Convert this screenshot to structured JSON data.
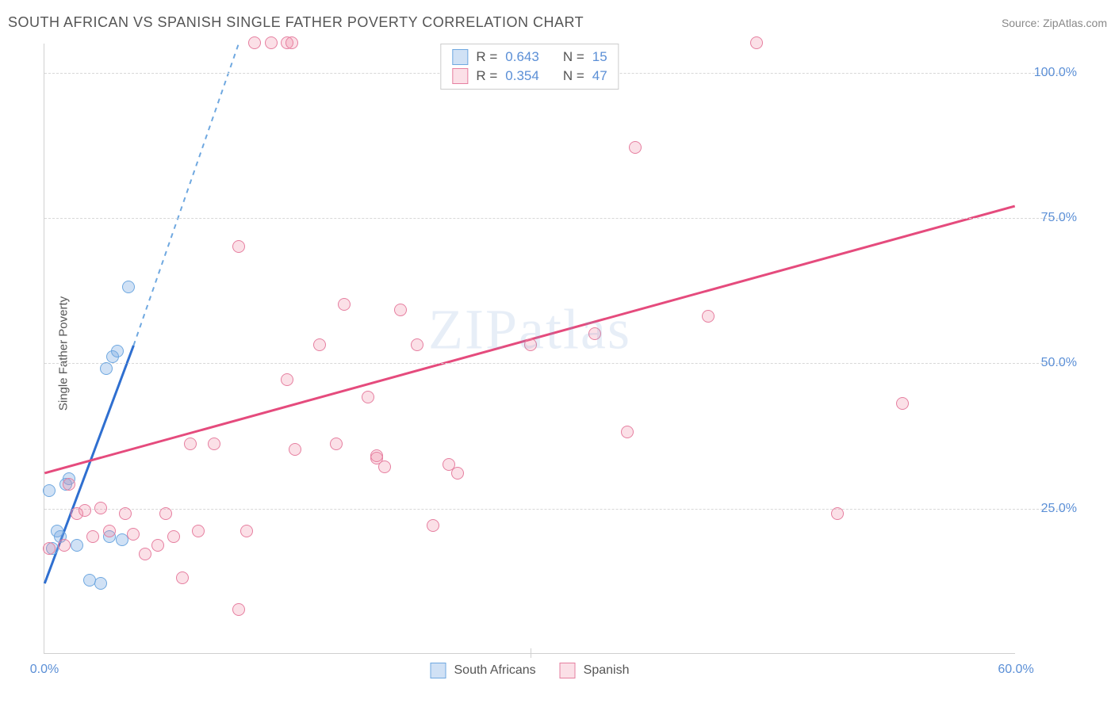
{
  "header": {
    "title": "SOUTH AFRICAN VS SPANISH SINGLE FATHER POVERTY CORRELATION CHART",
    "source": "Source: ZipAtlas.com"
  },
  "chart": {
    "type": "scatter",
    "ylabel": "Single Father Poverty",
    "watermark": "ZIPatlas",
    "background_color": "#ffffff",
    "grid_color": "#d8d8d8",
    "axis_color": "#d0d0d0",
    "tick_label_color": "#5b8fd6",
    "xlim": [
      0,
      60
    ],
    "ylim": [
      0,
      105
    ],
    "yticks": [
      25,
      50,
      75,
      100
    ],
    "ytick_labels": [
      "25.0%",
      "50.0%",
      "75.0%",
      "100.0%"
    ],
    "xticks": [
      0,
      60
    ],
    "xtick_labels": [
      "0.0%",
      "60.0%"
    ],
    "xtick_line_positions": [
      30
    ],
    "point_radius": 8,
    "series": [
      {
        "name": "South Africans",
        "color_fill": "rgba(120,170,225,0.35)",
        "color_stroke": "#6fa8e0",
        "trend_color": "#2f6fd0",
        "trend_dash_color": "#6fa8e0",
        "R": "0.643",
        "N": "15",
        "points": [
          [
            0.5,
            18
          ],
          [
            0.8,
            21
          ],
          [
            0.3,
            28
          ],
          [
            1.0,
            20
          ],
          [
            1.3,
            29
          ],
          [
            1.5,
            30
          ],
          [
            2.0,
            18.5
          ],
          [
            2.8,
            12.5
          ],
          [
            3.5,
            12
          ],
          [
            4.0,
            20
          ],
          [
            4.8,
            19.5
          ],
          [
            3.8,
            49
          ],
          [
            4.2,
            51
          ],
          [
            4.5,
            52
          ],
          [
            5.2,
            63
          ]
        ],
        "trend": {
          "x1": 0,
          "y1": 12,
          "x2": 5.5,
          "y2": 53,
          "extend_x": 12,
          "extend_y": 105
        }
      },
      {
        "name": "Spanish",
        "color_fill": "rgba(240,130,160,0.25)",
        "color_stroke": "#e67fa0",
        "trend_color": "#e54b7d",
        "R": "0.354",
        "N": "47",
        "points": [
          [
            0.3,
            18
          ],
          [
            1.2,
            18.5
          ],
          [
            1.5,
            29
          ],
          [
            2.0,
            24
          ],
          [
            2.5,
            24.5
          ],
          [
            3.0,
            20
          ],
          [
            3.5,
            25
          ],
          [
            4.0,
            21
          ],
          [
            5.0,
            24
          ],
          [
            5.5,
            20.5
          ],
          [
            6.2,
            17
          ],
          [
            7.0,
            18.5
          ],
          [
            7.5,
            24
          ],
          [
            8.0,
            20
          ],
          [
            8.5,
            13
          ],
          [
            9.0,
            36
          ],
          [
            9.5,
            21
          ],
          [
            10.5,
            36
          ],
          [
            12.0,
            7.5
          ],
          [
            12.5,
            21
          ],
          [
            13,
            105
          ],
          [
            14,
            105
          ],
          [
            15,
            105
          ],
          [
            15.3,
            105
          ],
          [
            12,
            70
          ],
          [
            15,
            47
          ],
          [
            15.5,
            35
          ],
          [
            17,
            53
          ],
          [
            18,
            36
          ],
          [
            18.5,
            60
          ],
          [
            20,
            44
          ],
          [
            20.5,
            34
          ],
          [
            20.5,
            33.5
          ],
          [
            21,
            32
          ],
          [
            22,
            59
          ],
          [
            23,
            53
          ],
          [
            24,
            22
          ],
          [
            25.5,
            31
          ],
          [
            25,
            32.5
          ],
          [
            30,
            53
          ],
          [
            34,
            55
          ],
          [
            36,
            38
          ],
          [
            36.5,
            87
          ],
          [
            41,
            58
          ],
          [
            44,
            105
          ],
          [
            49,
            24
          ],
          [
            53,
            43
          ]
        ],
        "trend": {
          "x1": 0,
          "y1": 31,
          "x2": 60,
          "y2": 77
        }
      }
    ],
    "legend_top": {
      "rows": [
        {
          "swatch_fill": "rgba(120,170,225,0.35)",
          "swatch_stroke": "#6fa8e0",
          "r_label": "R =",
          "r_val": "0.643",
          "n_label": "N =",
          "n_val": "15"
        },
        {
          "swatch_fill": "rgba(240,130,160,0.25)",
          "swatch_stroke": "#e67fa0",
          "r_label": "R =",
          "r_val": "0.354",
          "n_label": "N =",
          "n_val": "47"
        }
      ]
    },
    "legend_bottom": [
      {
        "swatch_fill": "rgba(120,170,225,0.35)",
        "swatch_stroke": "#6fa8e0",
        "label": "South Africans"
      },
      {
        "swatch_fill": "rgba(240,130,160,0.25)",
        "swatch_stroke": "#e67fa0",
        "label": "Spanish"
      }
    ]
  }
}
